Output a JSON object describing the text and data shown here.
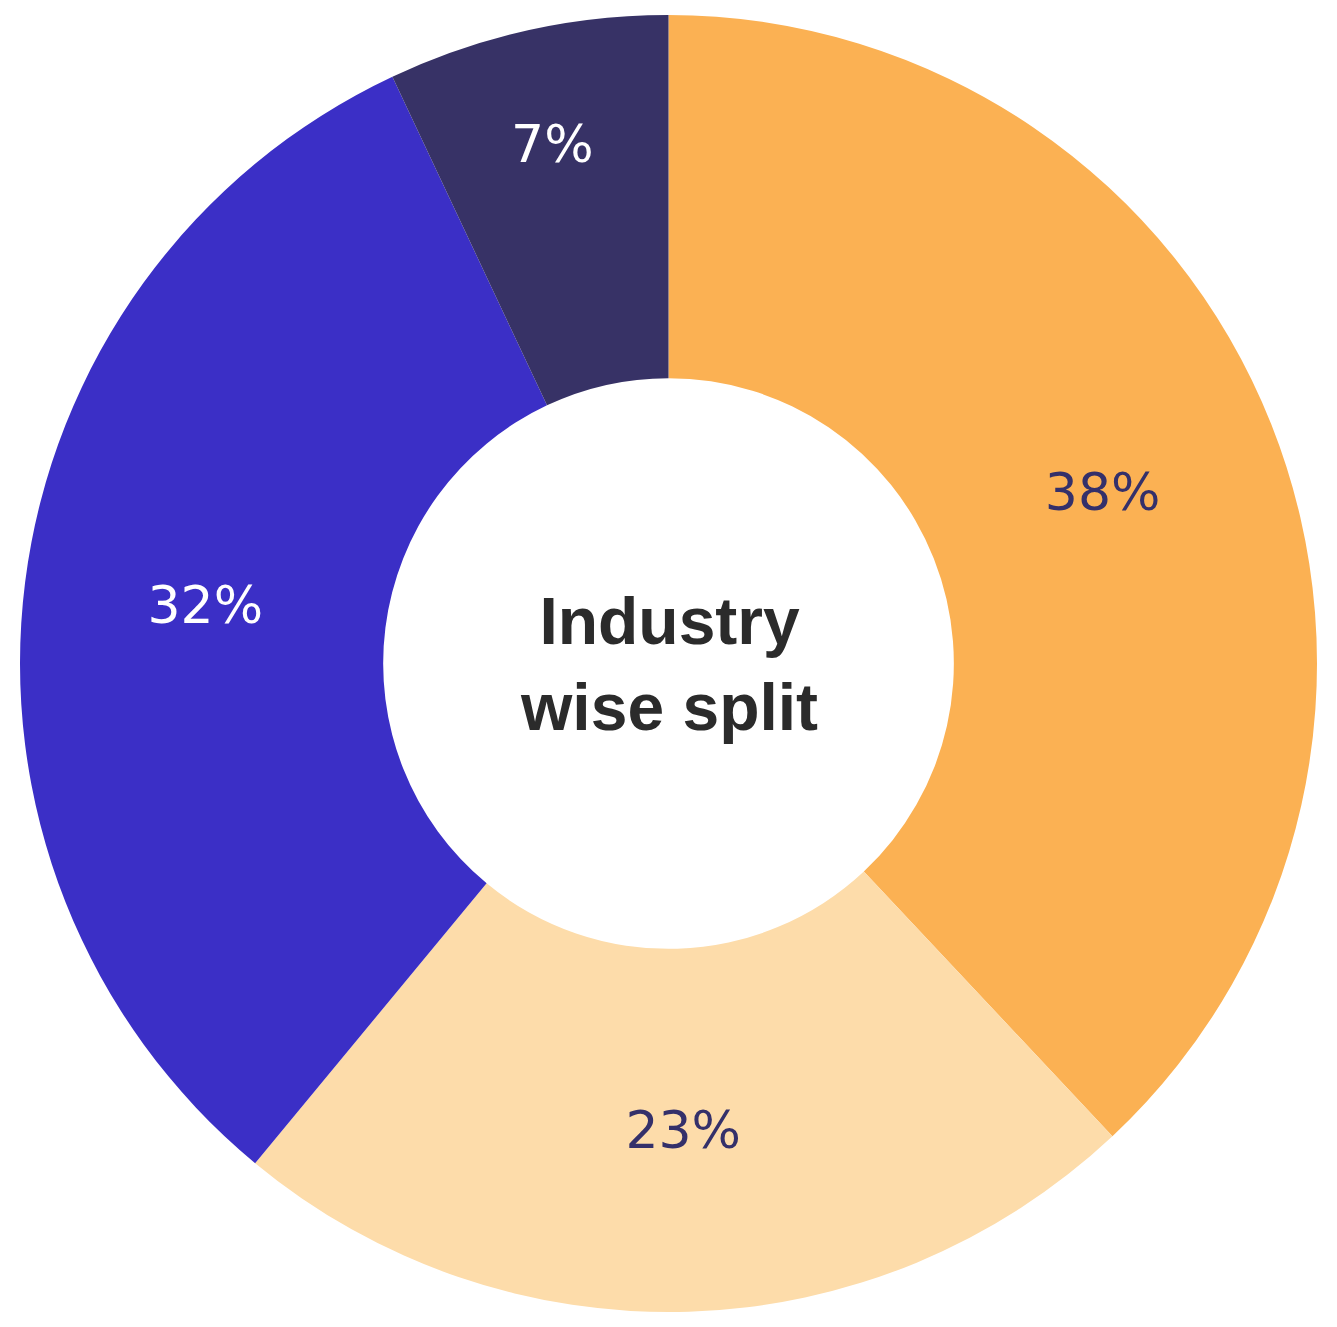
{
  "chart_data": {
    "type": "donut",
    "title": "Industry wise split",
    "categories": [
      null,
      null,
      null,
      null
    ],
    "values": [
      38,
      23,
      32,
      7
    ],
    "value_labels": [
      "38%",
      "23%",
      "32%",
      "7%"
    ],
    "colors": [
      "#fbb153",
      "#fddcaa",
      "#3b2fc6",
      "#373266"
    ],
    "legend": false
  }
}
